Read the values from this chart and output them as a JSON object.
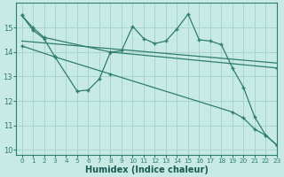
{
  "background_color": "#c8eae4",
  "grid_color": "#a8d4ce",
  "line_color": "#2e7d6e",
  "xlabel": "Humidex (Indice chaleur)",
  "xlim": [
    -0.5,
    23
  ],
  "ylim": [
    9.8,
    16.0
  ],
  "yticks": [
    10,
    11,
    12,
    13,
    14,
    15
  ],
  "xticks": [
    0,
    1,
    2,
    3,
    4,
    5,
    6,
    7,
    8,
    9,
    10,
    11,
    12,
    13,
    14,
    15,
    16,
    17,
    18,
    19,
    20,
    21,
    22,
    23
  ],
  "series": {
    "line1_x": [
      0,
      1,
      2,
      3,
      5,
      6,
      7,
      8,
      9,
      10,
      11,
      12,
      13,
      14,
      15,
      16,
      17,
      18,
      19,
      20,
      21,
      22,
      23
    ],
    "line1_y": [
      15.5,
      14.9,
      14.55,
      13.8,
      12.4,
      12.45,
      12.9,
      14.0,
      14.05,
      15.05,
      14.55,
      14.35,
      14.45,
      14.95,
      15.55,
      14.5,
      14.45,
      14.3,
      13.35,
      12.55,
      11.35,
      10.6,
      10.2
    ],
    "line2_x": [
      0,
      1,
      2,
      8,
      23
    ],
    "line2_y": [
      15.5,
      15.0,
      14.6,
      14.0,
      13.35
    ],
    "line3_x": [
      0,
      23
    ],
    "line3_y": [
      14.45,
      13.55
    ],
    "line4_x": [
      0,
      3,
      8,
      19,
      20,
      21,
      22,
      23
    ],
    "line4_y": [
      14.25,
      13.8,
      13.1,
      11.55,
      11.3,
      10.85,
      10.6,
      10.2
    ]
  }
}
